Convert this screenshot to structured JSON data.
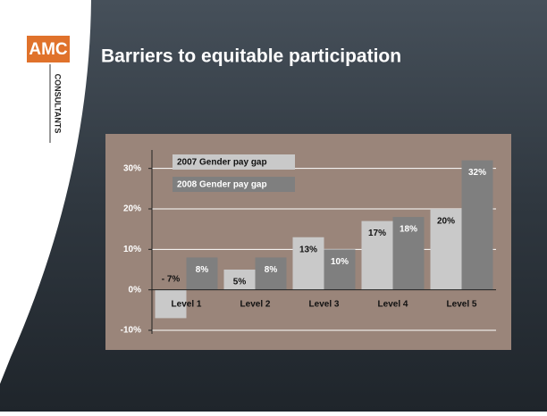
{
  "logo": {
    "name": "AMC",
    "tagline": "CONSULTANTS"
  },
  "chart_data": {
    "type": "bar",
    "title": "Barriers to equitable participation",
    "categories": [
      "Level 1",
      "Level 2",
      "Level 3",
      "Level 4",
      "Level 5"
    ],
    "series": [
      {
        "name": "2007 Gender pay gap",
        "color": "#c9c9c9",
        "values": [
          -7,
          5,
          13,
          17,
          20
        ],
        "value_labels": [
          "- 7%",
          "5%",
          "13%",
          "17%",
          "20%"
        ]
      },
      {
        "name": "2008 Gender pay gap",
        "color": "#7f7f7f",
        "values": [
          8,
          8,
          10,
          18,
          32
        ],
        "value_labels": [
          "8%",
          "8%",
          "10%",
          "18%",
          "32%"
        ]
      }
    ],
    "ylim": [
      -10,
      35
    ],
    "yticks": [
      {
        "value": -10,
        "label": "-10%"
      },
      {
        "value": 0,
        "label": "0%"
      },
      {
        "value": 10,
        "label": "10%"
      },
      {
        "value": 20,
        "label": "20%"
      },
      {
        "value": 30,
        "label": "30%"
      }
    ],
    "grid": true,
    "legend": "top-left"
  }
}
